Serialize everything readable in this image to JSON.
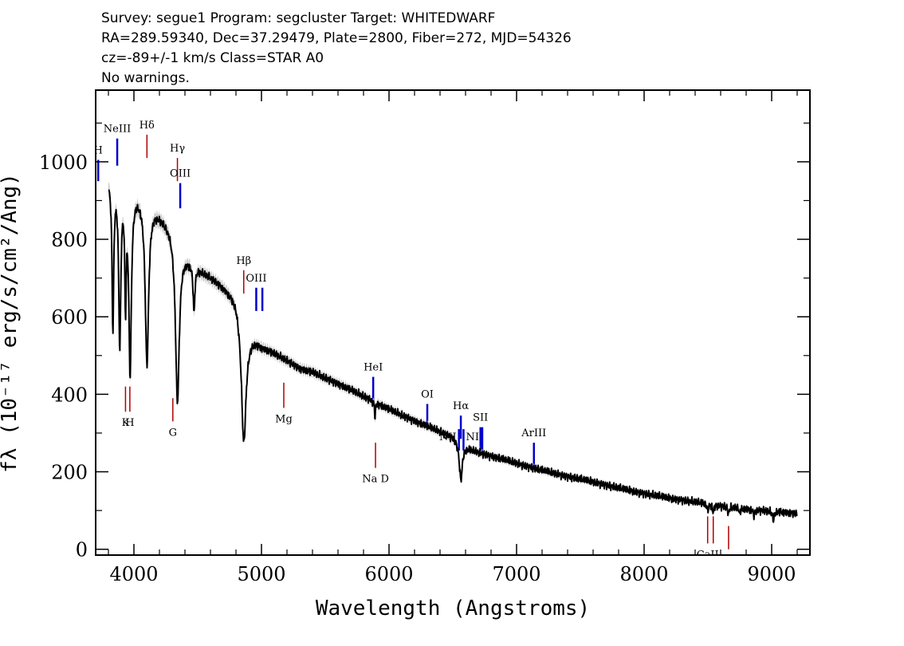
{
  "header": {
    "line1": "Survey: segue1 Program: segcluster Target: WHITEDWARF",
    "line2": "RA=289.59340, Dec=37.29479, Plate=2800, Fiber=272, MJD=54326",
    "line3": "cz=-89+/-1 km/s Class=STAR A0",
    "line4": "No warnings."
  },
  "chart_data": {
    "type": "line",
    "xlabel": "Wavelength (Angstroms)",
    "ylabel": "fλ (10⁻¹⁷ erg/s/cm²/Ang)",
    "xlim": [
      3700,
      9300
    ],
    "ylim": [
      -15,
      1185
    ],
    "x_ticks": [
      4000,
      5000,
      6000,
      7000,
      8000,
      9000
    ],
    "y_ticks": [
      0,
      200,
      400,
      600,
      800,
      1000
    ],
    "grid": false,
    "series": [
      {
        "color": "#000000",
        "continuum": [
          [
            3800,
            960
          ],
          [
            3900,
            960
          ],
          [
            4000,
            930
          ],
          [
            4100,
            905
          ],
          [
            4200,
            868
          ],
          [
            4300,
            830
          ],
          [
            4400,
            765
          ],
          [
            4500,
            728
          ],
          [
            4600,
            705
          ],
          [
            4700,
            680
          ],
          [
            4800,
            652
          ],
          [
            4900,
            562
          ],
          [
            5000,
            528
          ],
          [
            5100,
            508
          ],
          [
            5200,
            488
          ],
          [
            5300,
            468
          ],
          [
            5400,
            458
          ],
          [
            5500,
            442
          ],
          [
            5600,
            428
          ],
          [
            5700,
            412
          ],
          [
            5800,
            395
          ],
          [
            5900,
            378
          ],
          [
            6000,
            362
          ],
          [
            6100,
            346
          ],
          [
            6200,
            332
          ],
          [
            6300,
            318
          ],
          [
            6400,
            304
          ],
          [
            6500,
            291
          ],
          [
            6600,
            264
          ],
          [
            6700,
            251
          ],
          [
            6800,
            241
          ],
          [
            6900,
            232
          ],
          [
            7000,
            222
          ],
          [
            7200,
            204
          ],
          [
            7400,
            188
          ],
          [
            7600,
            174
          ],
          [
            7800,
            158
          ],
          [
            8000,
            144
          ],
          [
            8200,
            132
          ],
          [
            8400,
            122
          ],
          [
            8600,
            112
          ],
          [
            8800,
            104
          ],
          [
            9000,
            98
          ],
          [
            9200,
            93
          ]
        ],
        "absorption_lines": [
          {
            "center": 3835,
            "depth": 380,
            "width": 8
          },
          {
            "center": 3889,
            "depth": 420,
            "width": 10
          },
          {
            "center": 3934,
            "depth": 280,
            "width": 7
          },
          {
            "center": 3970,
            "depth": 470,
            "width": 12
          },
          {
            "center": 4102,
            "depth": 420,
            "width": 16
          },
          {
            "center": 4341,
            "depth": 420,
            "width": 18
          },
          {
            "center": 4471,
            "depth": 120,
            "width": 8
          },
          {
            "center": 4861,
            "depth": 320,
            "width": 22
          },
          {
            "center": 5890,
            "depth": 40,
            "width": 4
          },
          {
            "center": 6563,
            "depth": 95,
            "width": 14
          },
          {
            "center": 8498,
            "depth": 18,
            "width": 6
          },
          {
            "center": 8542,
            "depth": 20,
            "width": 6
          },
          {
            "center": 8662,
            "depth": 20,
            "width": 6
          },
          {
            "center": 8750,
            "depth": 14,
            "width": 6
          },
          {
            "center": 8863,
            "depth": 16,
            "width": 6
          },
          {
            "center": 9014,
            "depth": 22,
            "width": 8
          }
        ]
      }
    ],
    "line_markers": [
      {
        "label": "NeIII",
        "x": 3869,
        "y1": 990,
        "y2": 1060,
        "color": "#0000cc",
        "label_pos": "above"
      },
      {
        "label": "Hδ",
        "x": 4102,
        "y1": 1010,
        "y2": 1070,
        "color": "#b00000",
        "label_pos": "above"
      },
      {
        "label": "Hγ",
        "x": 4341,
        "y1": 950,
        "y2": 1010,
        "color": "#b00000",
        "label_pos": "above"
      },
      {
        "label": "OIII",
        "x": 4363,
        "y1": 880,
        "y2": 945,
        "color": "#0000cc",
        "label_pos": "above"
      },
      {
        "label": "H",
        "x": 3720,
        "y1": 950,
        "y2": 1005,
        "color": "#0000cc",
        "label_pos": "above"
      },
      {
        "label": "Hβ",
        "x": 4861,
        "y1": 660,
        "y2": 720,
        "color": "#b00000",
        "label_pos": "above"
      },
      {
        "label": "OIII",
        "x": 4959,
        "y1": 615,
        "y2": 675,
        "color": "#0000cc",
        "label_pos": "above"
      },
      {
        "label": "",
        "x": 5007,
        "y1": 615,
        "y2": 675,
        "color": "#0000cc",
        "label_pos": "none"
      },
      {
        "label": "HeI",
        "x": 5876,
        "y1": 385,
        "y2": 445,
        "color": "#0000cc",
        "label_pos": "above"
      },
      {
        "label": "OI",
        "x": 6300,
        "y1": 310,
        "y2": 375,
        "color": "#0000cc",
        "label_pos": "above"
      },
      {
        "label": "Hα",
        "x": 6563,
        "y1": 285,
        "y2": 345,
        "color": "#0000cc",
        "label_pos": "above"
      },
      {
        "label": "NII",
        "x": 6548,
        "y1": 255,
        "y2": 310,
        "color": "#0000cc",
        "label_pos": "left"
      },
      {
        "label": "NII",
        "x": 6584,
        "y1": 255,
        "y2": 310,
        "color": "#0000cc",
        "label_pos": "right"
      },
      {
        "label": "SII",
        "x": 6717,
        "y1": 255,
        "y2": 315,
        "color": "#0000cc",
        "label_pos": "above"
      },
      {
        "label": "",
        "x": 6731,
        "y1": 255,
        "y2": 315,
        "color": "#0000cc",
        "label_pos": "none"
      },
      {
        "label": "ArIII",
        "x": 7136,
        "y1": 215,
        "y2": 275,
        "color": "#0000cc",
        "label_pos": "above"
      },
      {
        "label": "K",
        "x": 3934,
        "y1": 355,
        "y2": 420,
        "color": "#b00000",
        "label_pos": "below"
      },
      {
        "label": "H",
        "x": 3968,
        "y1": 355,
        "y2": 420,
        "color": "#b00000",
        "label_pos": "below"
      },
      {
        "label": "G",
        "x": 4305,
        "y1": 330,
        "y2": 390,
        "color": "#b00000",
        "label_pos": "below"
      },
      {
        "label": "Mg",
        "x": 5175,
        "y1": 365,
        "y2": 430,
        "color": "#b00000",
        "label_pos": "below"
      },
      {
        "label": "Na  D",
        "x": 5894,
        "y1": 210,
        "y2": 275,
        "color": "#b00000",
        "label_pos": "below"
      },
      {
        "label": "CaII",
        "x": 8498,
        "y1": 15,
        "y2": 85,
        "color": "#b00000",
        "label_pos": "below"
      },
      {
        "label": "",
        "x": 8542,
        "y1": 15,
        "y2": 85,
        "color": "#b00000",
        "label_pos": "none"
      },
      {
        "label": "",
        "x": 8662,
        "y1": 0,
        "y2": 60,
        "color": "#b00000",
        "label_pos": "none"
      }
    ]
  }
}
